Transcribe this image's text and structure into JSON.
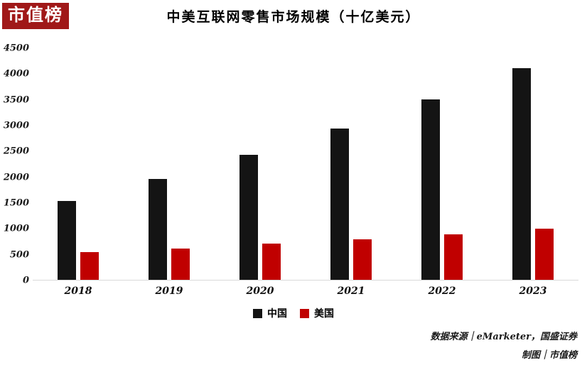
{
  "logo": {
    "text": "市值榜",
    "bg_color": "#A01818"
  },
  "title": "中美互联网零售市场规模（十亿美元）",
  "chart_data": {
    "type": "bar",
    "title": "中美互联网零售市场规模（十亿美元）",
    "categories": [
      "2018",
      "2019",
      "2020",
      "2021",
      "2022",
      "2023"
    ],
    "series": [
      {
        "key": "china",
        "name": "中国",
        "color": "#141414",
        "values": [
          1530,
          1950,
          2420,
          2930,
          3490,
          4100
        ]
      },
      {
        "key": "usa",
        "name": "美国",
        "color": "#C00000",
        "values": [
          540,
          610,
          700,
          790,
          880,
          990
        ]
      }
    ],
    "ylim": [
      0,
      4500
    ],
    "yticks": [
      0,
      500,
      1000,
      1500,
      2000,
      2500,
      3000,
      3500,
      4000,
      4500
    ],
    "ylabel": "",
    "xlabel": "",
    "grid": false,
    "legend_position": "bottom"
  },
  "footer": {
    "source": "数据来源｜eMarketer，国盛证券",
    "credit": "制图｜市值榜"
  }
}
